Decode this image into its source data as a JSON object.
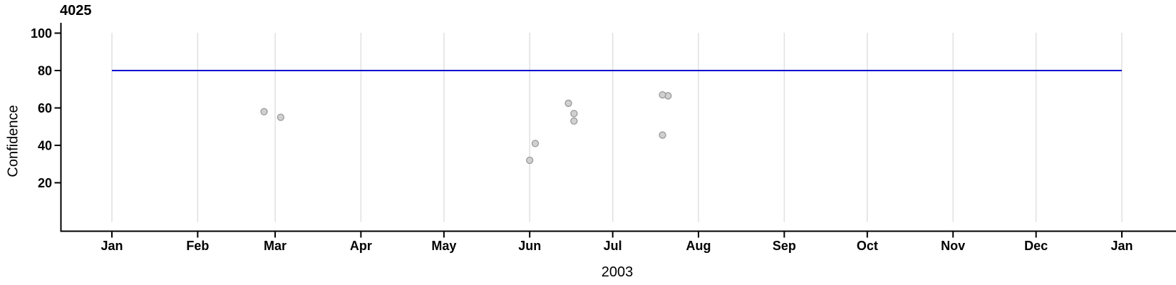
{
  "chart_data": {
    "type": "scatter",
    "title": "4025",
    "xlabel": "2003",
    "ylabel": "Confidence",
    "x_axis": {
      "start": "2003-01-01",
      "end": "2004-01-01",
      "tick_labels": [
        "Jan",
        "Feb",
        "Mar",
        "Apr",
        "May",
        "Jun",
        "Jul",
        "Aug",
        "Sep",
        "Oct",
        "Nov",
        "Dec",
        "Jan"
      ],
      "grid": true
    },
    "y_axis": {
      "ticks": [
        20,
        40,
        60,
        80,
        100
      ],
      "range_shown": [
        0,
        100
      ],
      "grid": false
    },
    "points": [
      {
        "date": "2003-02-25",
        "value": 58
      },
      {
        "date": "2003-03-03",
        "value": 55
      },
      {
        "date": "2003-06-01",
        "value": 32
      },
      {
        "date": "2003-06-03",
        "value": 41
      },
      {
        "date": "2003-06-15",
        "value": 62.5
      },
      {
        "date": "2003-06-17",
        "value": 53
      },
      {
        "date": "2003-06-17",
        "value": 57
      },
      {
        "date": "2003-07-19",
        "value": 45.5
      },
      {
        "date": "2003-07-21",
        "value": 66.5
      },
      {
        "date": "2003-07-19",
        "value": 67
      }
    ],
    "reference_line": {
      "value": 80,
      "from": "2003-01-01",
      "to": "2004-01-01"
    },
    "colors": {
      "reference_line": "#0000CD",
      "point_fill": "#CDCDCD",
      "point_stroke": "#999999",
      "grid": "#E0E0E0",
      "axis": "#000000"
    },
    "legend": "none"
  }
}
